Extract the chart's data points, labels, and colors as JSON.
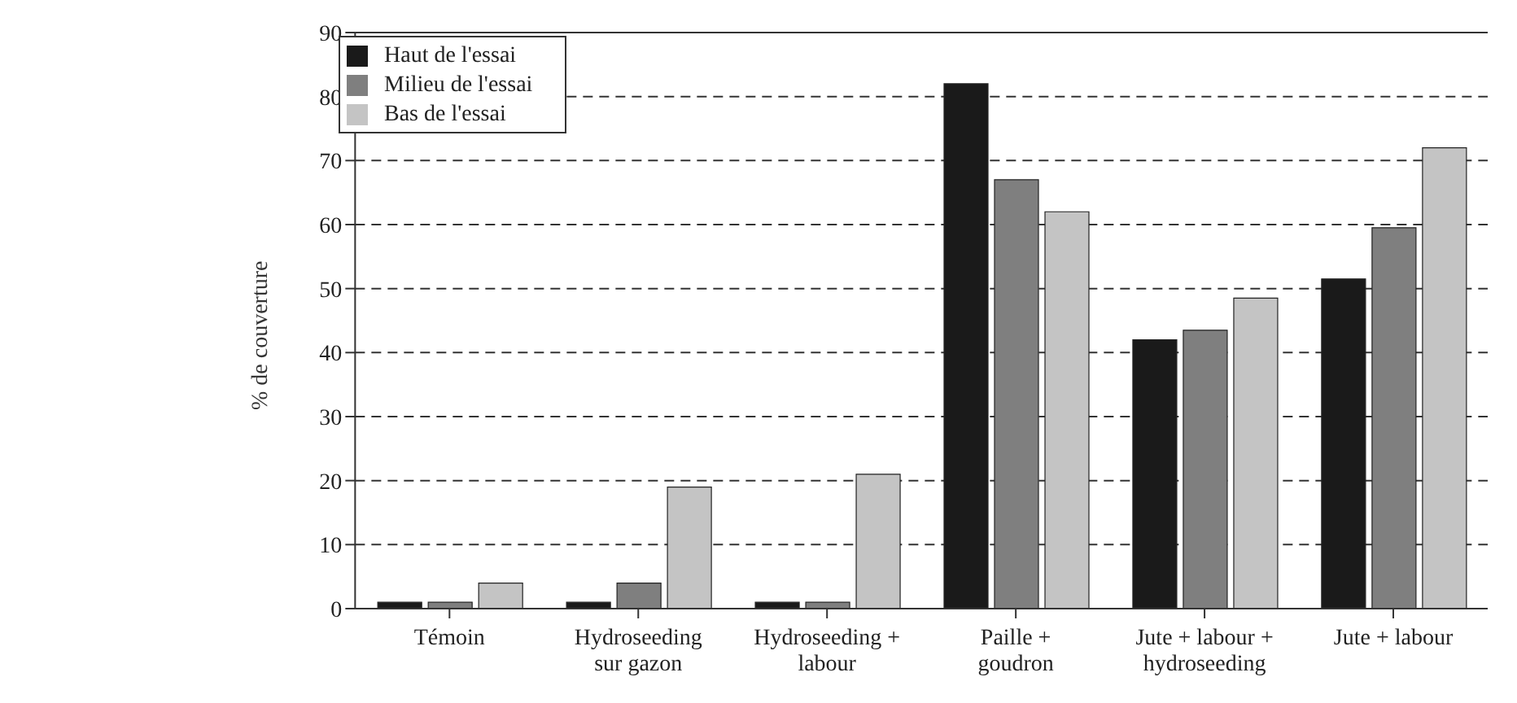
{
  "chart_data": {
    "type": "bar",
    "ylabel": "% de couverture",
    "categories": [
      "Témoin",
      "Hydroseeding sur gazon",
      "Hydroseeding + labour",
      "Paille + goudron",
      "Jute + labour + hydroseeding",
      "Jute + labour"
    ],
    "series": [
      {
        "name": "Haut de l'essai",
        "color": "#1a1a1a",
        "values": [
          1,
          1,
          1,
          82,
          42,
          51.5
        ]
      },
      {
        "name": "Milieu de l'essai",
        "color": "#7f7f7f",
        "values": [
          1,
          4,
          1,
          67,
          43.5,
          59.5
        ]
      },
      {
        "name": "Bas de l'essai",
        "color": "#c4c4c4",
        "values": [
          4,
          19,
          21,
          62,
          48.5,
          72
        ]
      }
    ],
    "ylim": [
      0,
      90
    ],
    "yticks": [
      0,
      10,
      20,
      30,
      40,
      50,
      60,
      70,
      80,
      90
    ],
    "grid": "y",
    "legend": "top left"
  }
}
